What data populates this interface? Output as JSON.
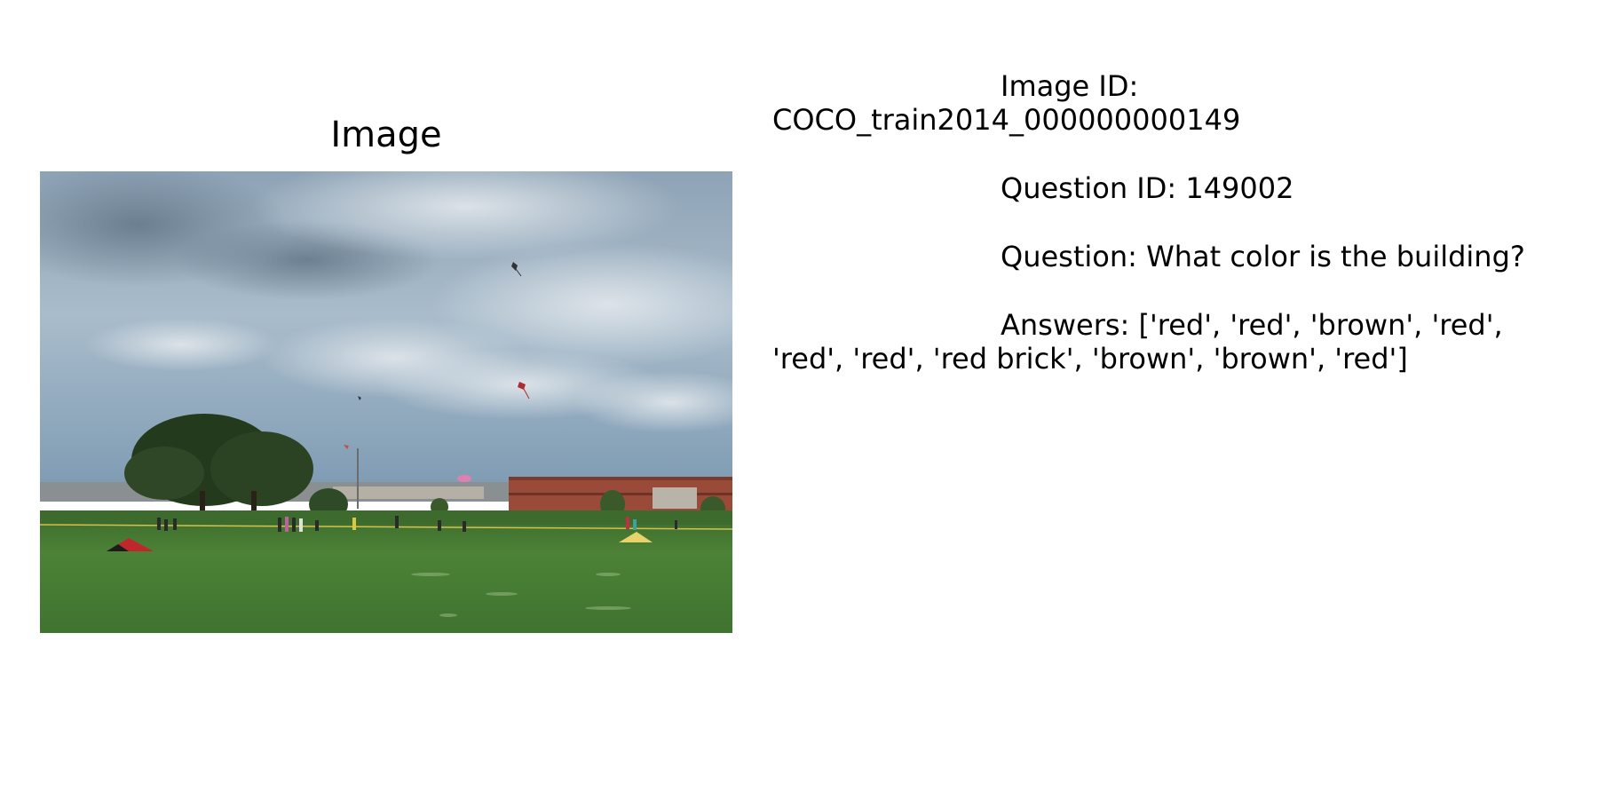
{
  "panel": {
    "title": "Image"
  },
  "photo": {
    "icon": "outdoor-park-kites-photo",
    "colors": {
      "sky_top": "#5d7488",
      "sky_mid": "#9fb3c5",
      "sky_light": "#c9d2da",
      "grass_far": "#3f6a2f",
      "grass_near": "#4f8a3a",
      "building": "#9a4a38",
      "trees": "#2c3f22"
    }
  },
  "info": {
    "image_id_label": "Image ID:",
    "image_id_value": "COCO_train2014_000000000149",
    "question_id_text": "Question ID: 149002",
    "question_text": "Question: What color is the building?",
    "answers_line1": "Answers: ['red', 'red', 'brown', 'red',",
    "answers_line2": "'red', 'red', 'red brick', 'brown', 'brown', 'red']"
  }
}
